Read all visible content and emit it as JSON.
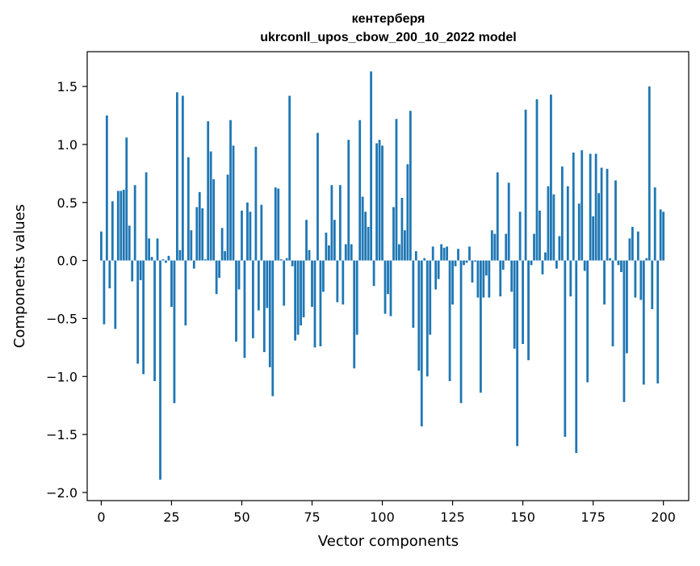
{
  "chart_data": {
    "type": "bar",
    "title_line1": "кентерберя",
    "title_line2": "ukrconll_upos_cbow_200_10_2022 model",
    "xlabel": "Vector components",
    "ylabel": "Components values",
    "xlim": [
      -5,
      209
    ],
    "ylim": [
      -2.07,
      1.8
    ],
    "x_ticks": [
      0,
      25,
      50,
      75,
      100,
      125,
      150,
      175,
      200
    ],
    "y_ticks": [
      -2.0,
      -1.5,
      -1.0,
      -0.5,
      0.0,
      0.5,
      1.0,
      1.5
    ],
    "x_tick_labels": [
      "0",
      "25",
      "50",
      "75",
      "100",
      "125",
      "150",
      "175",
      "200"
    ],
    "y_tick_labels": [
      "−2.0",
      "−1.5",
      "−1.0",
      "−0.5",
      "0.0",
      "0.5",
      "1.0",
      "1.5"
    ],
    "bar_color": "#1f77b4",
    "grid": false,
    "values": [
      0.25,
      -0.55,
      1.25,
      -0.24,
      0.51,
      -0.59,
      0.6,
      0.6,
      0.61,
      1.06,
      0.3,
      -0.18,
      0.65,
      -0.89,
      -0.17,
      -0.98,
      0.76,
      0.19,
      0.03,
      -1.04,
      0.19,
      -1.89,
      0.01,
      -0.02,
      0.04,
      -0.4,
      -1.23,
      1.45,
      0.09,
      1.42,
      -0.56,
      0.89,
      0.26,
      -0.07,
      0.46,
      0.59,
      0.45,
      0.01,
      1.2,
      0.94,
      0.7,
      -0.29,
      -0.15,
      0.28,
      0.08,
      0.74,
      1.21,
      0.99,
      -0.7,
      -0.25,
      0.43,
      -0.84,
      0.5,
      0.42,
      -0.67,
      0.98,
      -0.43,
      0.48,
      -0.79,
      -0.41,
      -0.92,
      -1.17,
      0.63,
      0.62,
      0.01,
      -0.39,
      0.02,
      1.42,
      -0.05,
      -0.69,
      -0.64,
      -0.56,
      -0.49,
      0.35,
      0.09,
      -0.4,
      -0.75,
      1.1,
      -0.74,
      -0.27,
      0.24,
      0.13,
      0.65,
      0.35,
      -0.36,
      0.65,
      -0.38,
      0.14,
      1.04,
      0.14,
      -0.93,
      -0.64,
      1.21,
      0.55,
      0.42,
      0.29,
      1.63,
      -0.22,
      1.01,
      1.04,
      0.99,
      -0.46,
      -0.29,
      -0.48,
      0.46,
      1.22,
      0.14,
      0.54,
      0.26,
      0.83,
      1.29,
      -0.58,
      0.08,
      -0.95,
      -1.43,
      0.02,
      -1.0,
      -0.64,
      0.12,
      -0.25,
      -0.16,
      0.14,
      0.11,
      0.12,
      -1.04,
      -0.38,
      -0.05,
      0.1,
      -1.23,
      -0.04,
      -0.02,
      0.12,
      -0.19,
      -0.01,
      -0.32,
      -1.14,
      -0.32,
      -0.13,
      -0.32,
      0.26,
      0.23,
      0.76,
      -0.31,
      -0.08,
      0.23,
      0.67,
      -0.27,
      -0.76,
      -1.6,
      0.42,
      -0.72,
      1.3,
      -0.86,
      -0.04,
      0.23,
      1.39,
      0.43,
      -0.12,
      0.07,
      0.64,
      1.43,
      0.57,
      -0.07,
      0.21,
      0.81,
      -1.52,
      0.64,
      -0.31,
      0.93,
      -1.66,
      0.49,
      0.95,
      -0.09,
      -1.05,
      0.92,
      0.38,
      0.92,
      0.58,
      0.8,
      -0.38,
      0.79,
      0.02,
      -0.74,
      0.69,
      -0.04,
      -0.1,
      -1.22,
      -0.8,
      0.19,
      0.29,
      -0.32,
      0.25,
      -0.34,
      -1.07,
      0.02,
      1.5,
      -0.42,
      0.63,
      -1.06,
      0.44,
      0.42
    ]
  }
}
